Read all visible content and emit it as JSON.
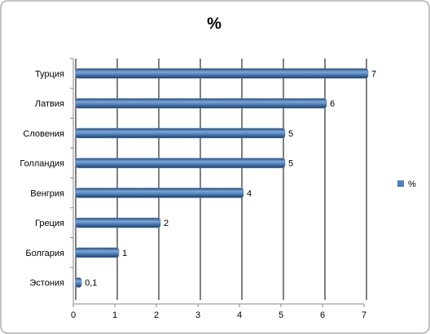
{
  "chart_data": {
    "type": "bar",
    "orientation": "horizontal",
    "title": "%",
    "categories": [
      "Турция",
      "Латвия",
      "Словения",
      "Голландия",
      "Венгрия",
      "Греция",
      "Болгария",
      "Эстония"
    ],
    "series": [
      {
        "name": "%",
        "color": "#4f81bd",
        "values": [
          7,
          6,
          5,
          5,
          4,
          2,
          1,
          0.1
        ],
        "value_labels": [
          "7",
          "6",
          "5",
          "5",
          "4",
          "2",
          "1",
          "0,1"
        ]
      }
    ],
    "xlim": [
      0,
      7
    ],
    "xticks": [
      0,
      1,
      2,
      3,
      4,
      5,
      6,
      7
    ],
    "grid": true,
    "legend": "right"
  }
}
